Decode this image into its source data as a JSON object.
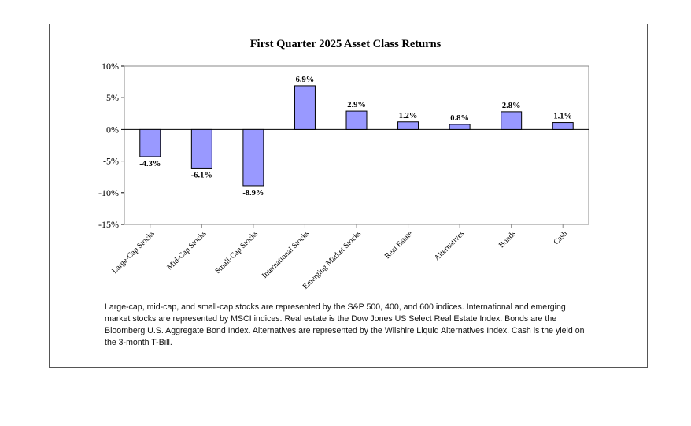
{
  "chart_data": {
    "type": "bar",
    "title": "First Quarter 2025 Asset Class Returns",
    "xlabel": "",
    "ylabel": "",
    "categories": [
      "Large-Cap Stocks",
      "Mid-Cap Stocks",
      "Small-Cap Stocks",
      "International Stocks",
      "Emerging Market Stocks",
      "Real Estate",
      "Alternatives",
      "Bonds",
      "Cash"
    ],
    "values": [
      -4.3,
      -6.1,
      -8.9,
      6.9,
      2.9,
      1.2,
      0.8,
      2.8,
      1.1
    ],
    "data_labels": [
      "-4.3%",
      "-6.1%",
      "-8.9%",
      "6.9%",
      "2.9%",
      "1.2%",
      "0.8%",
      "2.8%",
      "1.1%"
    ],
    "ylim": [
      -15,
      10
    ],
    "yticks": [
      10,
      5,
      0,
      -5,
      -10,
      -15
    ],
    "ytick_labels": [
      "10%",
      "5%",
      "0%",
      "-5%",
      "-10%",
      "-15%"
    ],
    "grid": false,
    "bar_color": "#9999ff"
  },
  "footnote": "Large-cap, mid-cap, and small-cap stocks are represented by the S&P 500, 400, and 600 indices. International and emerging market stocks are represented by MSCI indices. Real estate is the Dow Jones US Select Real Estate Index. Bonds are the Bloomberg U.S. Aggregate Bond Index. Alternatives are represented by the Wilshire Liquid Alternatives Index. Cash is the yield on the 3-month T-Bill."
}
